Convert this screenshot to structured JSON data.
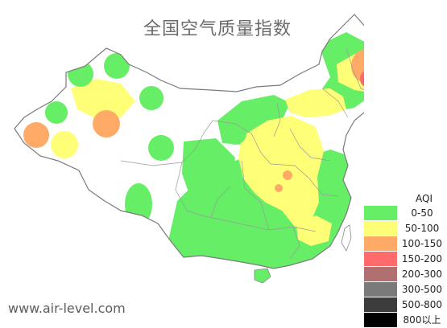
{
  "title": "全国空气质量指数",
  "watermark": "www.air-level.com",
  "legend": {
    "title": "AQI",
    "items": [
      {
        "label": "0-50",
        "color": "#66ee66"
      },
      {
        "label": "50-100",
        "color": "#ffff77"
      },
      {
        "label": "100-150",
        "color": "#ffaa66"
      },
      {
        "label": "150-200",
        "color": "#ff6a6a"
      },
      {
        "label": "200-300",
        "color": "#b07070"
      },
      {
        "label": "300-500",
        "color": "#7a7a7a"
      },
      {
        "label": "500-800",
        "color": "#3c3c3c"
      },
      {
        "label": "800以上",
        "color": "#000000"
      }
    ]
  }
}
